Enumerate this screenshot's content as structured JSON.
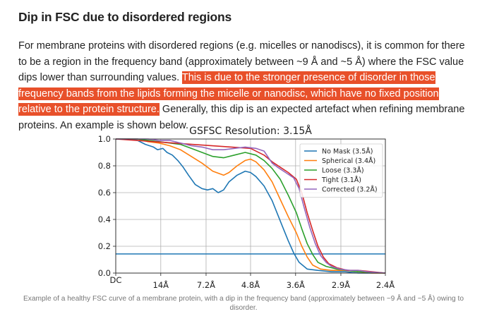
{
  "article": {
    "heading": "Dip in FSC due to disordered regions",
    "para_before": "For membrane proteins with disordered regions (e.g. micelles or nanodiscs), it is common for there to be a region in the frequency band (approximately between ~9 Å and ~5 Å) where the FSC value dips lower than surrounding values. ",
    "para_highlight": "This is due to the stronger presence of disorder in those frequency bands from the lipids forming the micelle or nanodisc, which have no fixed position relative to the protein structure.",
    "para_after": " Generally, this dip is an expected artefact when refining membrane proteins. An example is shown below.",
    "caption": "Example of a healthy FSC curve of a membrane protein, with a dip in the frequency band (approximately between ~9 Å and ~5 Å) owing to disorder."
  },
  "colors": {
    "highlight": "#e8502a",
    "text": "#222222",
    "caption": "#777777"
  },
  "chart_data": {
    "type": "line",
    "title": "GSFSC Resolution: 3.15Å",
    "xlabel": "",
    "ylabel": "",
    "ylim": [
      0,
      1
    ],
    "xlim": [
      0,
      1
    ],
    "x_tick_labels": [
      {
        "pos": 0.0,
        "label": "DC"
      },
      {
        "pos": 0.167,
        "label": "14Å"
      },
      {
        "pos": 0.335,
        "label": "7.2Å"
      },
      {
        "pos": 0.5,
        "label": "4.8Å"
      },
      {
        "pos": 0.667,
        "label": "3.6Å"
      },
      {
        "pos": 0.835,
        "label": "2.9Å"
      },
      {
        "pos": 1.0,
        "label": "2.4Å"
      }
    ],
    "y_ticks": [
      "0.0",
      "0.2",
      "0.4",
      "0.6",
      "0.8",
      "1.0"
    ],
    "grid": true,
    "legend_position": "top-right",
    "threshold": {
      "y": 0.143,
      "color": "#1f77b4"
    },
    "series": [
      {
        "name": "No Mask (3.5Å)",
        "color": "#1f77b4",
        "points": [
          [
            0,
            1
          ],
          [
            0.05,
            1
          ],
          [
            0.08,
            0.99
          ],
          [
            0.11,
            0.96
          ],
          [
            0.14,
            0.94
          ],
          [
            0.155,
            0.92
          ],
          [
            0.175,
            0.93
          ],
          [
            0.19,
            0.9
          ],
          [
            0.21,
            0.88
          ],
          [
            0.23,
            0.84
          ],
          [
            0.25,
            0.79
          ],
          [
            0.27,
            0.73
          ],
          [
            0.295,
            0.66
          ],
          [
            0.32,
            0.63
          ],
          [
            0.34,
            0.62
          ],
          [
            0.36,
            0.63
          ],
          [
            0.38,
            0.6
          ],
          [
            0.4,
            0.62
          ],
          [
            0.42,
            0.68
          ],
          [
            0.45,
            0.73
          ],
          [
            0.48,
            0.76
          ],
          [
            0.5,
            0.75
          ],
          [
            0.52,
            0.72
          ],
          [
            0.55,
            0.65
          ],
          [
            0.58,
            0.54
          ],
          [
            0.6,
            0.44
          ],
          [
            0.62,
            0.34
          ],
          [
            0.64,
            0.24
          ],
          [
            0.66,
            0.15
          ],
          [
            0.68,
            0.08
          ],
          [
            0.71,
            0.03
          ],
          [
            0.75,
            0.02
          ],
          [
            0.8,
            0.01
          ],
          [
            0.85,
            0.01
          ],
          [
            0.9,
            0.0
          ],
          [
            1,
            0.0
          ]
        ]
      },
      {
        "name": "Spherical (3.4Å)",
        "color": "#ff7f0e",
        "points": [
          [
            0,
            1
          ],
          [
            0.08,
            1
          ],
          [
            0.12,
            0.98
          ],
          [
            0.16,
            0.97
          ],
          [
            0.2,
            0.95
          ],
          [
            0.24,
            0.92
          ],
          [
            0.28,
            0.87
          ],
          [
            0.32,
            0.82
          ],
          [
            0.36,
            0.76
          ],
          [
            0.4,
            0.73
          ],
          [
            0.42,
            0.75
          ],
          [
            0.45,
            0.8
          ],
          [
            0.48,
            0.84
          ],
          [
            0.5,
            0.85
          ],
          [
            0.52,
            0.83
          ],
          [
            0.55,
            0.77
          ],
          [
            0.58,
            0.68
          ],
          [
            0.61,
            0.55
          ],
          [
            0.64,
            0.42
          ],
          [
            0.67,
            0.3
          ],
          [
            0.69,
            0.2
          ],
          [
            0.71,
            0.12
          ],
          [
            0.73,
            0.06
          ],
          [
            0.76,
            0.03
          ],
          [
            0.8,
            0.02
          ],
          [
            0.85,
            0.02
          ],
          [
            0.9,
            0.01
          ],
          [
            0.95,
            0.0
          ],
          [
            1,
            0.0
          ]
        ]
      },
      {
        "name": "Loose (3.3Å)",
        "color": "#2ca02c",
        "points": [
          [
            0,
            1
          ],
          [
            0.08,
            1
          ],
          [
            0.12,
            0.99
          ],
          [
            0.16,
            0.98
          ],
          [
            0.2,
            0.97
          ],
          [
            0.24,
            0.96
          ],
          [
            0.28,
            0.93
          ],
          [
            0.32,
            0.9
          ],
          [
            0.36,
            0.87
          ],
          [
            0.4,
            0.86
          ],
          [
            0.44,
            0.88
          ],
          [
            0.48,
            0.9
          ],
          [
            0.52,
            0.88
          ],
          [
            0.55,
            0.84
          ],
          [
            0.58,
            0.78
          ],
          [
            0.61,
            0.7
          ],
          [
            0.64,
            0.58
          ],
          [
            0.67,
            0.45
          ],
          [
            0.69,
            0.33
          ],
          [
            0.71,
            0.22
          ],
          [
            0.73,
            0.14
          ],
          [
            0.75,
            0.08
          ],
          [
            0.78,
            0.05
          ],
          [
            0.82,
            0.03
          ],
          [
            0.86,
            0.02
          ],
          [
            0.9,
            0.01
          ],
          [
            1,
            0.0
          ]
        ]
      },
      {
        "name": "Tight (3.1Å)",
        "color": "#d62728",
        "points": [
          [
            0,
            1
          ],
          [
            0.5,
            0.93
          ],
          [
            0.55,
            0.88
          ],
          [
            0.58,
            0.83
          ],
          [
            0.61,
            0.79
          ],
          [
            0.64,
            0.75
          ],
          [
            0.67,
            0.7
          ],
          [
            0.69,
            0.6
          ],
          [
            0.71,
            0.45
          ],
          [
            0.73,
            0.32
          ],
          [
            0.75,
            0.2
          ],
          [
            0.77,
            0.12
          ],
          [
            0.79,
            0.07
          ],
          [
            0.82,
            0.04
          ],
          [
            0.86,
            0.02
          ],
          [
            0.9,
            0.02
          ],
          [
            0.95,
            0.01
          ],
          [
            1,
            0.0
          ]
        ]
      },
      {
        "name": "Corrected (3.2Å)",
        "color": "#9467bd",
        "points": [
          [
            0,
            1
          ],
          [
            0.08,
            1
          ],
          [
            0.12,
            1.0
          ],
          [
            0.16,
            0.99
          ],
          [
            0.2,
            0.99
          ],
          [
            0.24,
            0.97
          ],
          [
            0.28,
            0.95
          ],
          [
            0.32,
            0.94
          ],
          [
            0.36,
            0.92
          ],
          [
            0.4,
            0.92
          ],
          [
            0.44,
            0.93
          ],
          [
            0.48,
            0.94
          ],
          [
            0.52,
            0.93
          ],
          [
            0.55,
            0.91
          ],
          [
            0.58,
            0.82
          ],
          [
            0.6,
            0.79
          ],
          [
            0.63,
            0.75
          ],
          [
            0.66,
            0.71
          ],
          [
            0.68,
            0.63
          ],
          [
            0.7,
            0.48
          ],
          [
            0.72,
            0.34
          ],
          [
            0.74,
            0.22
          ],
          [
            0.76,
            0.13
          ],
          [
            0.78,
            0.08
          ],
          [
            0.8,
            0.05
          ],
          [
            0.83,
            0.03
          ],
          [
            0.87,
            0.02
          ],
          [
            0.9,
            0.02
          ],
          [
            0.93,
            0.01
          ],
          [
            1,
            0.0
          ]
        ]
      }
    ]
  }
}
